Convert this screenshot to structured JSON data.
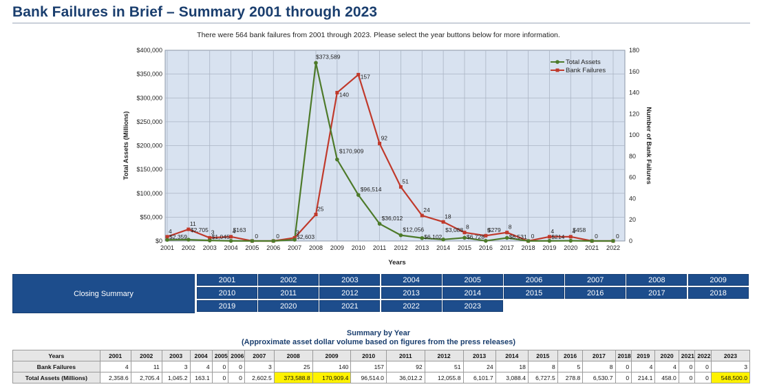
{
  "page": {
    "title": "Bank Failures in Brief – Summary 2001 through 2023",
    "subtitle": "There were 564 bank failures from 2001 through 2023. Please select the year buttons below for more information."
  },
  "chart_data": {
    "type": "line",
    "xlabel": "Years",
    "ylabel_left": "Total Assets (Millions)",
    "ylabel_right": "Number of Bank Failures",
    "x": [
      "2001",
      "2002",
      "2003",
      "2004",
      "2005",
      "2006",
      "2007",
      "2008",
      "2009",
      "2010",
      "2011",
      "2012",
      "2013",
      "2014",
      "2015",
      "2016",
      "2017",
      "2018",
      "2019",
      "2020",
      "2021",
      "2022"
    ],
    "left_ticks": [
      "$0",
      "$50,000",
      "$100,000",
      "$150,000",
      "$200,000",
      "$250,000",
      "$300,000",
      "$350,000",
      "$400,000"
    ],
    "right_ticks": [
      "0",
      "20",
      "40",
      "60",
      "80",
      "100",
      "120",
      "140",
      "160",
      "180"
    ],
    "ylim_left": [
      0,
      400000
    ],
    "ylim_right": [
      0,
      180
    ],
    "grid": true,
    "legend_position": "top-right",
    "series": [
      {
        "name": "Total Assets",
        "axis": "left",
        "color": "#4d7a2a",
        "values": [
          2359,
          2705,
          1045,
          163,
          0,
          0,
          2603,
          373589,
          170909,
          96514,
          36012,
          12056,
          6102,
          3088,
          6728,
          279,
          6531,
          0,
          214,
          458,
          0,
          0
        ],
        "labels": [
          "$2,359",
          "$2,705",
          "$1,045",
          "$163",
          "",
          "",
          "$2,603",
          "$373,589",
          "$170,909",
          "$96,514",
          "$36,012",
          "$12,056",
          "$6,102",
          "$3,088",
          "$6,728",
          "$279",
          "$6,531",
          "",
          "$214",
          "$458",
          "",
          ""
        ]
      },
      {
        "name": "Bank Failures",
        "axis": "right",
        "color": "#c0392b",
        "values": [
          4,
          11,
          3,
          4,
          0,
          0,
          3,
          25,
          140,
          157,
          92,
          51,
          24,
          18,
          8,
          5,
          8,
          0,
          4,
          4,
          0,
          0
        ],
        "labels": [
          "4",
          "11",
          "3",
          "4",
          "0",
          "0",
          "3",
          "25",
          "140",
          "157",
          "92",
          "51",
          "24",
          "18",
          "8",
          "5",
          "8",
          "0",
          "4",
          "4",
          "0",
          "0"
        ]
      }
    ]
  },
  "buttons": {
    "closing_summary": "Closing Summary",
    "years": [
      "2001",
      "2002",
      "2003",
      "2004",
      "2005",
      "2006",
      "2007",
      "2008",
      "2009",
      "2010",
      "2011",
      "2012",
      "2013",
      "2014",
      "2015",
      "2016",
      "2017",
      "2018",
      "2019",
      "2020",
      "2021",
      "2022",
      "2023"
    ]
  },
  "summary": {
    "title": "Summary by Year",
    "subtitle": "(Approximate asset dollar volume based on figures from the press releases)",
    "header_label": "Years",
    "years": [
      "2001",
      "2002",
      "2003",
      "2004",
      "2005",
      "2006",
      "2007",
      "2008",
      "2009",
      "2010",
      "2011",
      "2012",
      "2013",
      "2014",
      "2015",
      "2016",
      "2017",
      "2018",
      "2019",
      "2020",
      "2021",
      "2022",
      "2023"
    ],
    "rows": [
      {
        "label": "Bank Failures",
        "values": [
          "4",
          "11",
          "3",
          "4",
          "0",
          "0",
          "3",
          "25",
          "140",
          "157",
          "92",
          "51",
          "24",
          "18",
          "8",
          "5",
          "8",
          "0",
          "4",
          "4",
          "0",
          "0",
          "3"
        ]
      },
      {
        "label": "Total Assets (Millions)",
        "values": [
          "2,358.6",
          "2,705.4",
          "1,045.2",
          "163.1",
          "0",
          "0",
          "2,602.5",
          "373,588.8",
          "170,909.4",
          "96,514.0",
          "36,012.2",
          "12,055.8",
          "6,101.7",
          "3,088.4",
          "6,727.5",
          "278.8",
          "6,530.7",
          "0",
          "214.1",
          "458.0",
          "0",
          "0",
          "548,500.0"
        ]
      }
    ],
    "highlight_color": "#fff200",
    "highlighted_years": [
      "2008",
      "2009",
      "2023"
    ]
  }
}
